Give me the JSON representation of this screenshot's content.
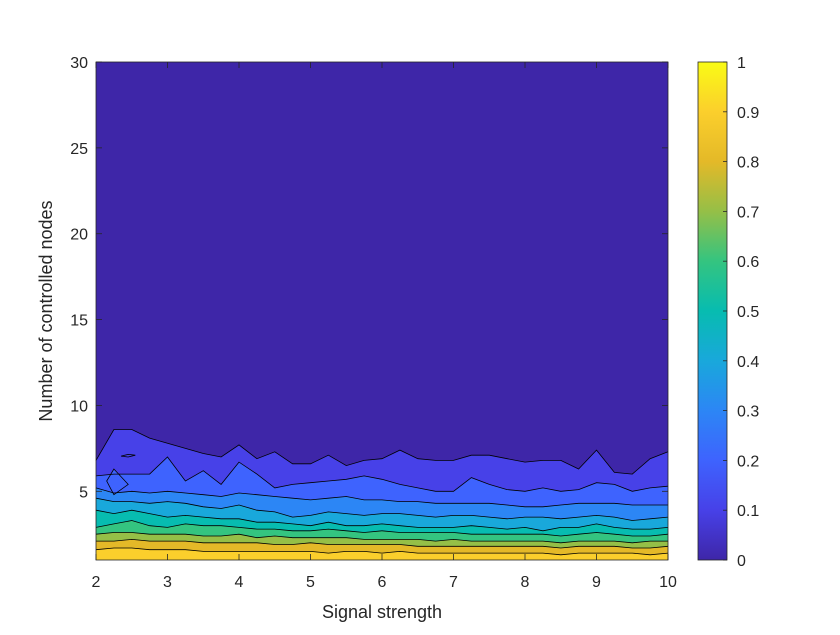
{
  "chart_data": {
    "type": "contour",
    "title": "",
    "xlabel": "Signal strength",
    "ylabel": "Number of controlled nodes",
    "xlim": [
      2,
      10
    ],
    "ylim": [
      1,
      30
    ],
    "x_ticks": [
      2,
      3,
      4,
      5,
      6,
      7,
      8,
      9,
      10
    ],
    "y_ticks": [
      5,
      10,
      15,
      20,
      25,
      30
    ],
    "x_tick_labels": [
      "2",
      "3",
      "4",
      "5",
      "6",
      "7",
      "8",
      "9",
      "10"
    ],
    "y_tick_labels": [
      "5",
      "10",
      "15",
      "20",
      "25",
      "30"
    ],
    "colorbar": {
      "colormap": "parula",
      "range": [
        0,
        1
      ],
      "ticks": [
        0,
        0.1,
        0.2,
        0.3,
        0.4,
        0.5,
        0.6,
        0.7,
        0.8,
        0.9,
        1
      ],
      "tick_labels": [
        "0",
        "0.1",
        "0.2",
        "0.3",
        "0.4",
        "0.5",
        "0.6",
        "0.7",
        "0.8",
        "0.9",
        "1"
      ]
    },
    "contour_levels": [
      0,
      0.1,
      0.2,
      0.3,
      0.4,
      0.5,
      0.6,
      0.7,
      0.8,
      0.9
    ],
    "level_colors": [
      "#3e26a8",
      "#4741e8",
      "#3e63fe",
      "#2c86f5",
      "#19a8db",
      "#07bcb0",
      "#34c480",
      "#95bf47",
      "#e4b928",
      "#fbcf2c"
    ],
    "contour_x": [
      2,
      2.25,
      2.5,
      2.75,
      3,
      3.25,
      3.5,
      3.75,
      4,
      4.25,
      4.5,
      4.75,
      5,
      5.25,
      5.5,
      5.75,
      6,
      6.25,
      6.5,
      6.75,
      7,
      7.25,
      7.5,
      7.75,
      8,
      8.25,
      8.5,
      8.75,
      9,
      9.25,
      9.5,
      9.75,
      10
    ],
    "contour_lines": [
      {
        "level": 0.1,
        "y": [
          6.8,
          8.6,
          8.6,
          8.1,
          7.8,
          7.5,
          7.2,
          7.0,
          7.7,
          6.9,
          7.3,
          6.6,
          6.6,
          7.1,
          6.5,
          6.8,
          6.9,
          7.4,
          6.9,
          6.8,
          6.8,
          7.1,
          7.1,
          6.9,
          6.7,
          6.8,
          6.8,
          6.3,
          7.4,
          6.1,
          6.0,
          6.9,
          7.3
        ]
      },
      {
        "level": 0.2,
        "y": [
          5.9,
          6.0,
          6.0,
          6.0,
          7.0,
          5.6,
          6.2,
          5.4,
          6.7,
          6.0,
          5.2,
          5.4,
          5.5,
          5.6,
          5.7,
          5.9,
          5.7,
          5.4,
          5.2,
          5.0,
          5.0,
          5.8,
          5.4,
          5.1,
          5.0,
          5.2,
          5.0,
          5.1,
          5.5,
          5.4,
          5.0,
          5.2,
          5.3
        ]
      },
      {
        "level": 0.3,
        "y": [
          5.2,
          4.9,
          5.0,
          4.9,
          5.0,
          4.9,
          4.8,
          4.7,
          4.9,
          4.8,
          4.7,
          4.6,
          4.5,
          4.6,
          4.7,
          4.5,
          4.5,
          4.4,
          4.4,
          4.3,
          4.3,
          4.3,
          4.3,
          4.2,
          4.1,
          4.1,
          4.2,
          4.3,
          4.3,
          4.3,
          4.2,
          4.2,
          4.2
        ]
      },
      {
        "level": 0.4,
        "y": [
          4.6,
          4.4,
          4.4,
          4.3,
          4.4,
          4.3,
          4.1,
          4.0,
          4.2,
          3.9,
          3.8,
          3.5,
          3.6,
          3.8,
          3.7,
          3.6,
          3.7,
          3.7,
          3.6,
          3.5,
          3.6,
          3.6,
          3.5,
          3.4,
          3.5,
          3.5,
          3.4,
          3.5,
          3.6,
          3.5,
          3.3,
          3.4,
          3.5
        ]
      },
      {
        "level": 0.5,
        "y": [
          3.9,
          3.7,
          3.9,
          3.7,
          3.5,
          3.6,
          3.5,
          3.4,
          3.4,
          3.2,
          3.2,
          3.1,
          3.0,
          3.2,
          3.0,
          3.0,
          3.1,
          3.0,
          2.9,
          2.9,
          2.9,
          3.0,
          2.9,
          2.8,
          2.9,
          2.7,
          2.9,
          2.9,
          3.1,
          2.9,
          2.8,
          2.8,
          2.9
        ]
      },
      {
        "level": 0.6,
        "y": [
          2.9,
          3.1,
          3.3,
          3.0,
          2.9,
          3.1,
          3.0,
          3.0,
          2.9,
          2.8,
          2.8,
          2.7,
          2.7,
          2.8,
          2.7,
          2.6,
          2.7,
          2.6,
          2.6,
          2.6,
          2.6,
          2.5,
          2.5,
          2.5,
          2.5,
          2.5,
          2.4,
          2.5,
          2.6,
          2.5,
          2.4,
          2.4,
          2.5
        ]
      },
      {
        "level": 0.7,
        "y": [
          2.5,
          2.6,
          2.6,
          2.5,
          2.5,
          2.5,
          2.4,
          2.4,
          2.5,
          2.3,
          2.4,
          2.3,
          2.3,
          2.3,
          2.3,
          2.2,
          2.2,
          2.2,
          2.2,
          2.1,
          2.2,
          2.1,
          2.1,
          2.1,
          2.1,
          2.1,
          2.0,
          2.1,
          2.1,
          2.1,
          2.0,
          2.1,
          2.1
        ]
      },
      {
        "level": 0.8,
        "y": [
          2.1,
          2.1,
          2.2,
          2.1,
          2.1,
          2.1,
          2.0,
          2.0,
          2.0,
          2.0,
          1.9,
          1.9,
          2.0,
          1.9,
          1.9,
          1.9,
          1.9,
          1.9,
          1.8,
          1.8,
          1.8,
          1.8,
          1.8,
          1.8,
          1.8,
          1.8,
          1.7,
          1.8,
          1.8,
          1.8,
          1.7,
          1.7,
          1.8
        ]
      },
      {
        "level": 0.9,
        "y": [
          1.6,
          1.7,
          1.7,
          1.6,
          1.6,
          1.6,
          1.5,
          1.5,
          1.5,
          1.5,
          1.5,
          1.5,
          1.5,
          1.4,
          1.5,
          1.5,
          1.4,
          1.5,
          1.4,
          1.4,
          1.4,
          1.4,
          1.4,
          1.4,
          1.4,
          1.4,
          1.3,
          1.4,
          1.4,
          1.4,
          1.4,
          1.3,
          1.4
        ]
      }
    ],
    "islands": [
      {
        "level": 0.2,
        "region": "around x 2.25-2.5, y 5-6",
        "points": [
          [
            2.15,
            5.6
          ],
          [
            2.25,
            6.3
          ],
          [
            2.45,
            5.4
          ],
          [
            2.25,
            4.8
          ],
          [
            2.2,
            5.2
          ]
        ]
      },
      {
        "level": 0.1,
        "region": "around x 2.5, y 7.1",
        "points": [
          [
            2.35,
            7.05
          ],
          [
            2.45,
            7.15
          ],
          [
            2.55,
            7.1
          ],
          [
            2.45,
            7.0
          ]
        ]
      }
    ],
    "grid": false,
    "legend": "colorbar-right"
  }
}
